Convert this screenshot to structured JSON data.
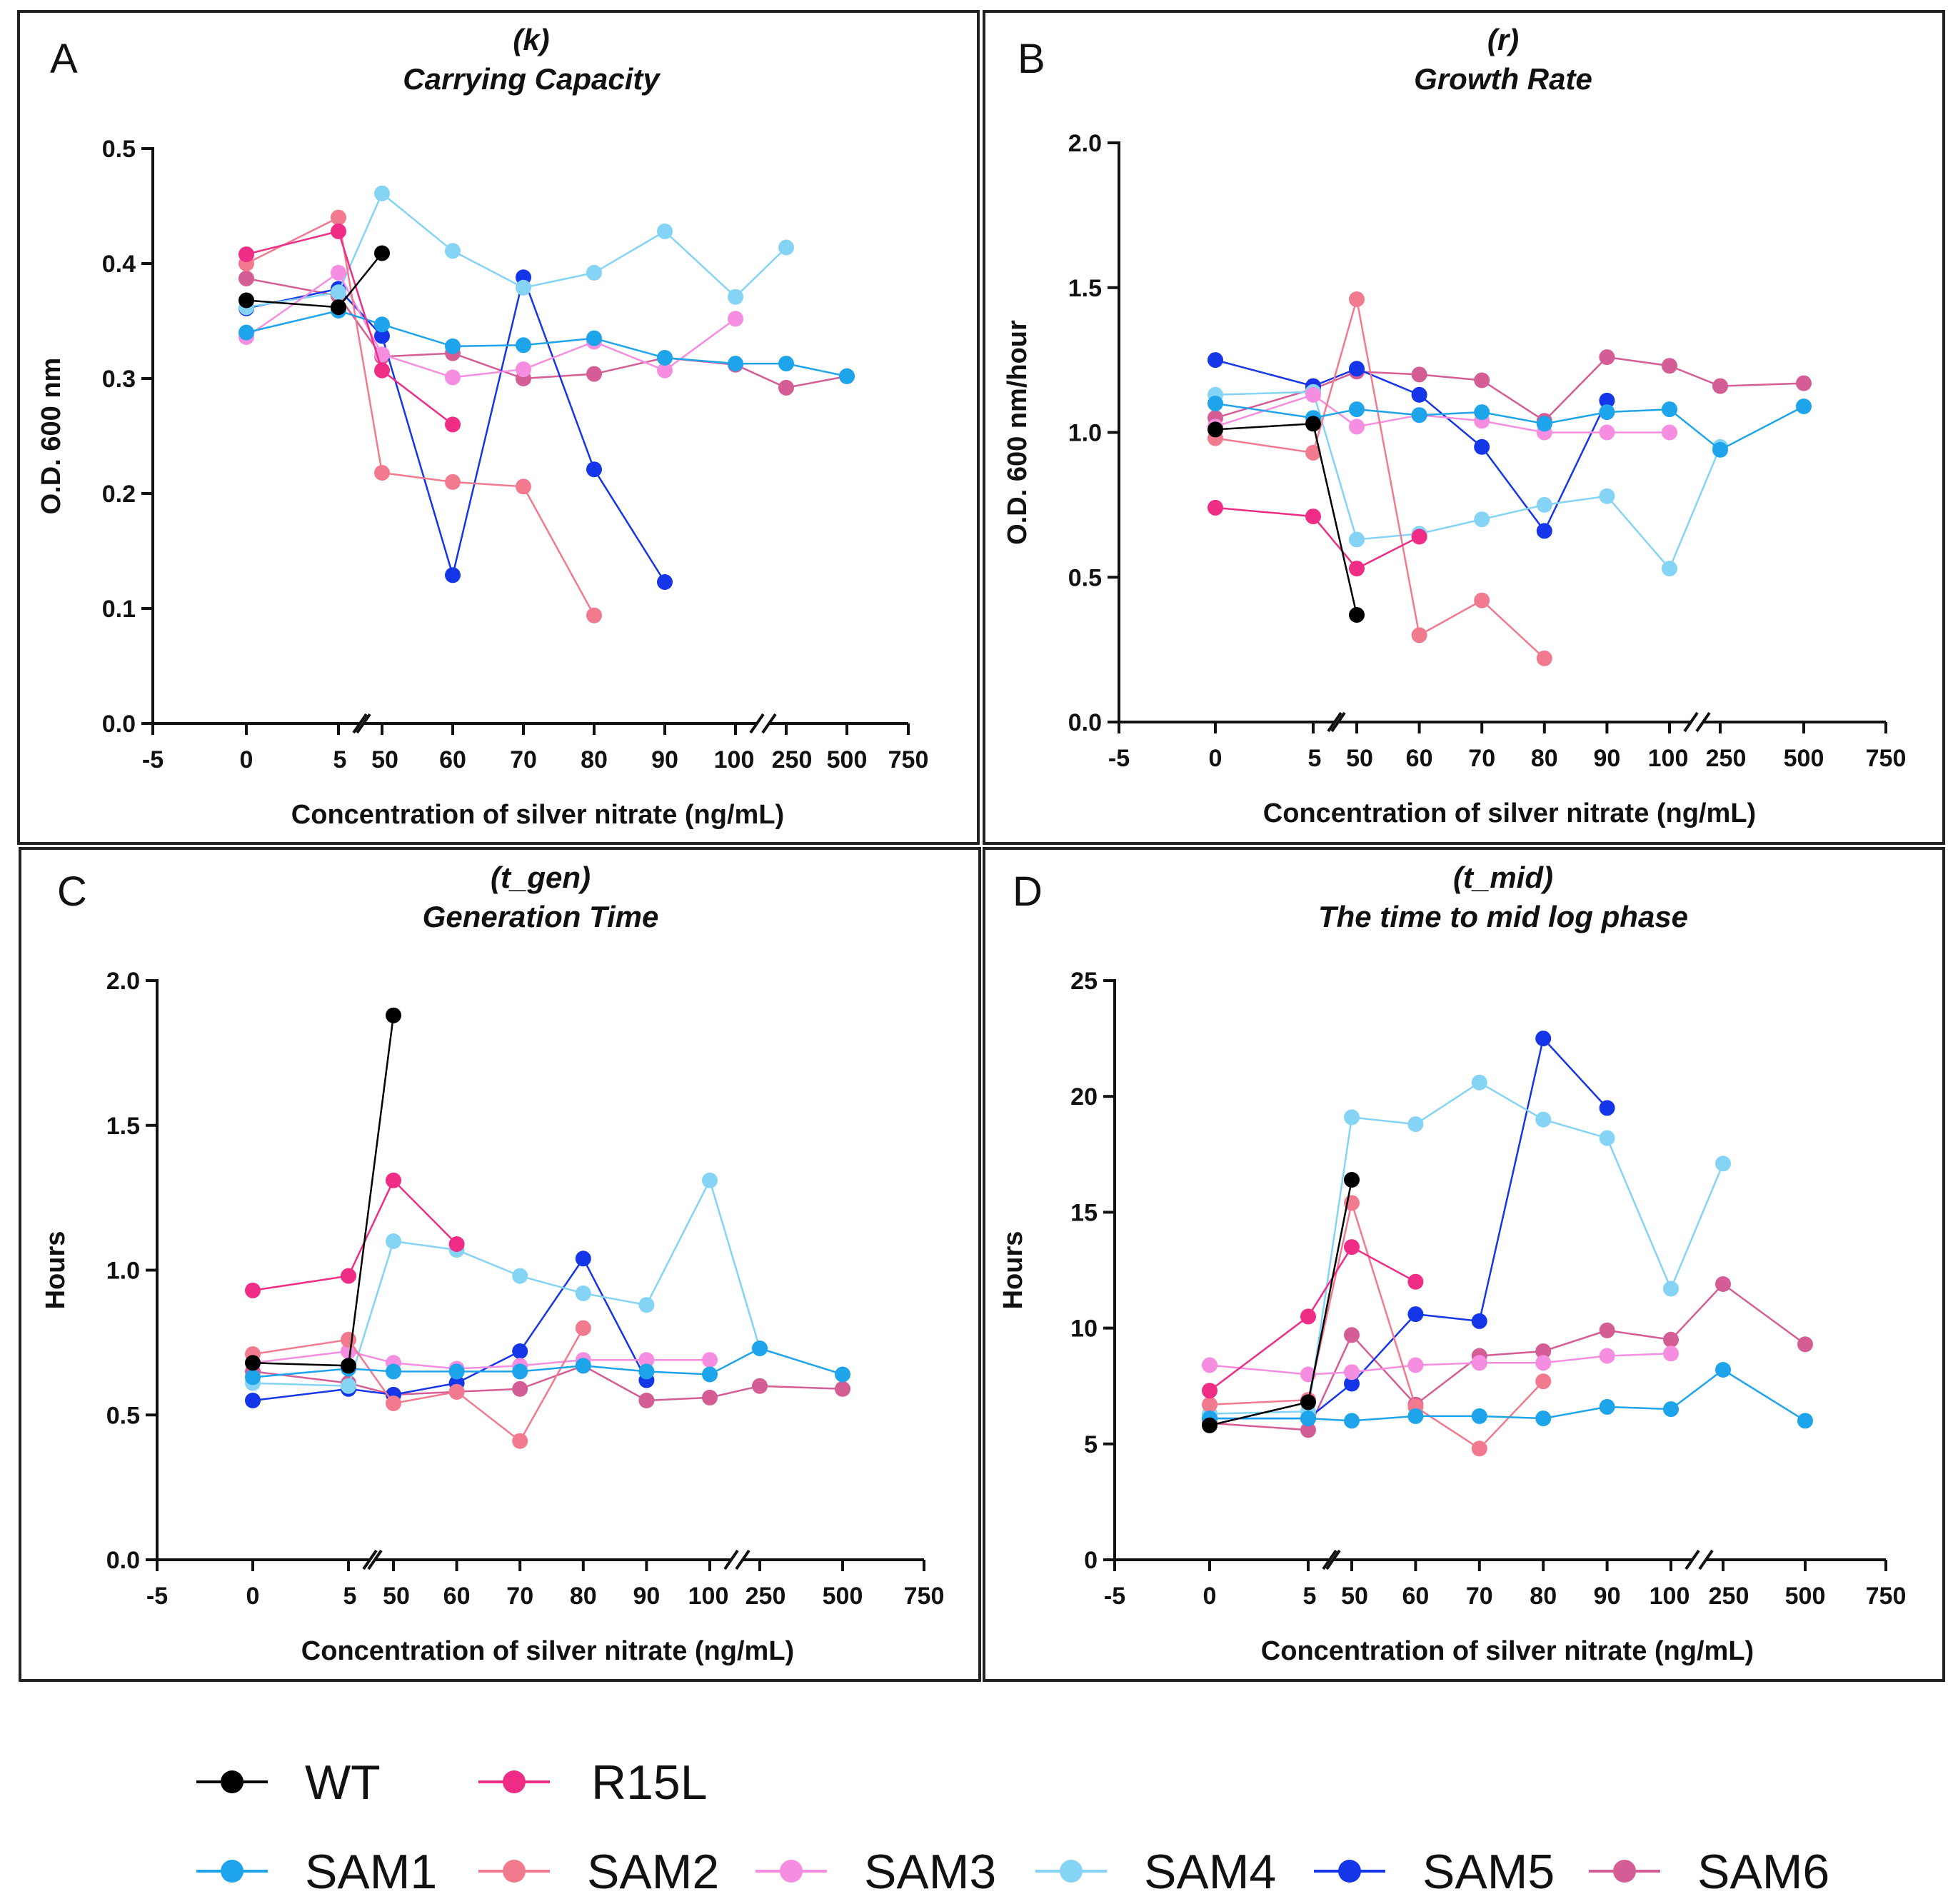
{
  "legend": [
    {
      "name": "WT",
      "color": "#000000"
    },
    {
      "name": "R15L",
      "color": "#ef2d86"
    },
    {
      "name": "SAM1",
      "color": "#1ea4ea"
    },
    {
      "name": "SAM2",
      "color": "#f27a8e"
    },
    {
      "name": "SAM3",
      "color": "#f58ee0"
    },
    {
      "name": "SAM4",
      "color": "#85d3f5"
    },
    {
      "name": "SAM5",
      "color": "#1535e8"
    },
    {
      "name": "SAM6",
      "color": "#d45d95"
    }
  ],
  "chart_data": [
    {
      "type": "line",
      "panel": "A",
      "title_line1": "(k)",
      "title_line2": "Carrying Capacity",
      "xlabel": "Concentration of silver nitrate (ng/mL)",
      "ylabel": "O.D. 600 nm",
      "ylim": [
        0,
        0.5
      ],
      "yticks": [
        0.0,
        0.1,
        0.2,
        0.3,
        0.4,
        0.5
      ],
      "ytick_labels": [
        "0.0",
        "0.1",
        "0.2",
        "0.3",
        "0.4",
        "0.5"
      ],
      "xticks": [
        "-5",
        "0",
        "5",
        "50",
        "60",
        "70",
        "80",
        "90",
        "100",
        "250",
        "500",
        "750"
      ],
      "series": [
        {
          "name": "WT",
          "x": [
            0,
            5,
            50
          ],
          "y": [
            0.368,
            0.362,
            0.409
          ]
        },
        {
          "name": "R15L",
          "x": [
            0,
            5,
            50,
            60
          ],
          "y": [
            0.408,
            0.428,
            0.307,
            0.26
          ]
        },
        {
          "name": "SAM1",
          "x": [
            0,
            5,
            50,
            60,
            70,
            80,
            90,
            100,
            250,
            500
          ],
          "y": [
            0.34,
            0.359,
            0.347,
            0.328,
            0.329,
            0.335,
            0.318,
            0.313,
            0.313,
            0.302
          ]
        },
        {
          "name": "SAM2",
          "x": [
            0,
            5,
            50,
            60,
            70,
            80
          ],
          "y": [
            0.4,
            0.44,
            0.218,
            0.21,
            0.206,
            0.094
          ]
        },
        {
          "name": "SAM3",
          "x": [
            0,
            5,
            50,
            60,
            70,
            80,
            90,
            100
          ],
          "y": [
            0.336,
            0.392,
            0.321,
            0.301,
            0.308,
            0.332,
            0.307,
            0.352
          ]
        },
        {
          "name": "SAM4",
          "x": [
            0,
            5,
            50,
            60,
            70,
            80,
            90,
            100,
            250
          ],
          "y": [
            0.362,
            0.375,
            0.461,
            0.411,
            0.379,
            0.392,
            0.428,
            0.371,
            0.414
          ]
        },
        {
          "name": "SAM5",
          "x": [
            0,
            5,
            50,
            60,
            70,
            80,
            90
          ],
          "y": [
            0.361,
            0.378,
            0.337,
            0.129,
            0.388,
            0.221,
            0.123
          ]
        },
        {
          "name": "SAM6",
          "x": [
            0,
            5,
            50,
            60,
            70,
            80,
            90,
            100,
            250,
            500
          ],
          "y": [
            0.387,
            0.372,
            0.319,
            0.322,
            0.3,
            0.304,
            0.318,
            0.312,
            0.292,
            0.302
          ]
        }
      ]
    },
    {
      "type": "line",
      "panel": "B",
      "title_line1": "(r)",
      "title_line2": "Growth Rate",
      "xlabel": "Concentration of silver nitrate (ng/mL)",
      "ylabel": "O.D. 600 nm/hour",
      "ylim": [
        0,
        2.0
      ],
      "yticks": [
        0.0,
        0.5,
        1.0,
        1.5,
        2.0
      ],
      "ytick_labels": [
        "0.0",
        "0.5",
        "1.0",
        "1.5",
        "2.0"
      ],
      "xticks": [
        "-5",
        "0",
        "5",
        "50",
        "60",
        "70",
        "80",
        "90",
        "100",
        "250",
        "500",
        "750"
      ],
      "series": [
        {
          "name": "WT",
          "x": [
            0,
            5,
            50
          ],
          "y": [
            1.01,
            1.03,
            0.37
          ]
        },
        {
          "name": "R15L",
          "x": [
            0,
            5,
            50,
            60
          ],
          "y": [
            0.74,
            0.71,
            0.53,
            0.64
          ]
        },
        {
          "name": "SAM1",
          "x": [
            0,
            5,
            50,
            60,
            70,
            80,
            90,
            100,
            250,
            500
          ],
          "y": [
            1.1,
            1.05,
            1.08,
            1.06,
            1.07,
            1.03,
            1.07,
            1.08,
            0.94,
            1.09
          ]
        },
        {
          "name": "SAM2",
          "x": [
            0,
            5,
            50,
            60,
            70,
            80
          ],
          "y": [
            0.98,
            0.93,
            1.46,
            0.3,
            0.42,
            0.22
          ]
        },
        {
          "name": "SAM3",
          "x": [
            0,
            5,
            50,
            60,
            70,
            80,
            90,
            100
          ],
          "y": [
            1.02,
            1.13,
            1.02,
            1.06,
            1.04,
            1.0,
            1.0,
            1.0
          ]
        },
        {
          "name": "SAM4",
          "x": [
            0,
            5,
            50,
            60,
            70,
            80,
            90,
            100,
            250
          ],
          "y": [
            1.13,
            1.14,
            0.63,
            0.65,
            0.7,
            0.75,
            0.78,
            0.53,
            0.95
          ]
        },
        {
          "name": "SAM5",
          "x": [
            0,
            5,
            50,
            60,
            70,
            80,
            90
          ],
          "y": [
            1.25,
            1.16,
            1.22,
            1.13,
            0.95,
            0.66,
            1.11
          ]
        },
        {
          "name": "SAM6",
          "x": [
            0,
            5,
            50,
            60,
            70,
            80,
            90,
            100,
            250,
            500
          ],
          "y": [
            1.05,
            1.15,
            1.21,
            1.2,
            1.18,
            1.04,
            1.26,
            1.23,
            1.16,
            1.17
          ]
        }
      ]
    },
    {
      "type": "line",
      "panel": "C",
      "title_line1": "(t_gen)",
      "title_line2": "Generation Time",
      "xlabel": "Concentration of silver nitrate (ng/mL)",
      "ylabel": "Hours",
      "ylim": [
        0,
        2.0
      ],
      "yticks": [
        0.0,
        0.5,
        1.0,
        1.5,
        2.0
      ],
      "ytick_labels": [
        "0.0",
        "0.5",
        "1.0",
        "1.5",
        "2.0"
      ],
      "xticks": [
        "-5",
        "0",
        "5",
        "50",
        "60",
        "70",
        "80",
        "90",
        "100",
        "250",
        "500",
        "750"
      ],
      "series": [
        {
          "name": "WT",
          "x": [
            0,
            5,
            50
          ],
          "y": [
            0.68,
            0.67,
            1.88
          ]
        },
        {
          "name": "R15L",
          "x": [
            0,
            5,
            50,
            60
          ],
          "y": [
            0.93,
            0.98,
            1.31,
            1.09
          ]
        },
        {
          "name": "SAM1",
          "x": [
            0,
            5,
            50,
            60,
            70,
            80,
            90,
            100,
            250,
            500
          ],
          "y": [
            0.63,
            0.66,
            0.65,
            0.65,
            0.65,
            0.67,
            0.65,
            0.64,
            0.73,
            0.64
          ]
        },
        {
          "name": "SAM2",
          "x": [
            0,
            5,
            50,
            60,
            70,
            80
          ],
          "y": [
            0.71,
            0.76,
            0.54,
            0.58,
            0.41,
            0.8
          ]
        },
        {
          "name": "SAM3",
          "x": [
            0,
            5,
            50,
            60,
            70,
            80,
            90,
            100
          ],
          "y": [
            0.68,
            0.72,
            0.68,
            0.66,
            0.67,
            0.69,
            0.69,
            0.69
          ]
        },
        {
          "name": "SAM4",
          "x": [
            0,
            5,
            50,
            60,
            70,
            80,
            90,
            100,
            250
          ],
          "y": [
            0.61,
            0.6,
            1.1,
            1.07,
            0.98,
            0.92,
            0.88,
            1.31,
            0.73
          ]
        },
        {
          "name": "SAM5",
          "x": [
            0,
            5,
            50,
            60,
            70,
            80,
            90
          ],
          "y": [
            0.55,
            0.59,
            0.57,
            0.61,
            0.72,
            1.04,
            0.62
          ]
        },
        {
          "name": "SAM6",
          "x": [
            0,
            5,
            50,
            60,
            70,
            80,
            90,
            100,
            250,
            500
          ],
          "y": [
            0.65,
            0.61,
            0.57,
            0.58,
            0.59,
            0.67,
            0.55,
            0.56,
            0.6,
            0.59
          ]
        }
      ]
    },
    {
      "type": "line",
      "panel": "D",
      "title_line1": "(t_mid)",
      "title_line2": "The time to mid log phase",
      "xlabel": "Concentration of silver nitrate (ng/mL)",
      "ylabel": "Hours",
      "ylim": [
        0,
        25
      ],
      "yticks": [
        0,
        5,
        10,
        15,
        20,
        25
      ],
      "ytick_labels": [
        "0",
        "5",
        "10",
        "15",
        "20",
        "25"
      ],
      "xticks": [
        "-5",
        "0",
        "5",
        "50",
        "60",
        "70",
        "80",
        "90",
        "100",
        "250",
        "500",
        "750"
      ],
      "series": [
        {
          "name": "WT",
          "x": [
            0,
            5,
            50
          ],
          "y": [
            5.8,
            6.8,
            16.4
          ]
        },
        {
          "name": "R15L",
          "x": [
            0,
            5,
            50,
            60
          ],
          "y": [
            7.3,
            10.5,
            13.5,
            12.0
          ]
        },
        {
          "name": "SAM1",
          "x": [
            0,
            5,
            50,
            60,
            70,
            80,
            90,
            100,
            250,
            500
          ],
          "y": [
            6.1,
            6.1,
            6.0,
            6.2,
            6.2,
            6.1,
            6.6,
            6.5,
            8.2,
            6.0
          ]
        },
        {
          "name": "SAM2",
          "x": [
            0,
            5,
            50,
            60,
            70,
            80
          ],
          "y": [
            6.7,
            6.9,
            15.4,
            6.6,
            4.8,
            7.7
          ]
        },
        {
          "name": "SAM3",
          "x": [
            0,
            5,
            50,
            60,
            70,
            80,
            90,
            100
          ],
          "y": [
            8.4,
            8.0,
            8.1,
            8.4,
            8.5,
            8.5,
            8.8,
            8.9
          ]
        },
        {
          "name": "SAM4",
          "x": [
            0,
            5,
            50,
            60,
            70,
            80,
            90,
            100,
            250
          ],
          "y": [
            6.3,
            6.4,
            19.1,
            18.8,
            20.6,
            19.0,
            18.2,
            11.7,
            17.1
          ]
        },
        {
          "name": "SAM5",
          "x": [
            0,
            5,
            50,
            60,
            70,
            80,
            90
          ],
          "y": [
            6.1,
            6.1,
            7.6,
            10.6,
            10.3,
            22.5,
            19.5
          ]
        },
        {
          "name": "SAM6",
          "x": [
            0,
            5,
            50,
            60,
            70,
            80,
            90,
            100,
            250,
            500
          ],
          "y": [
            5.9,
            5.6,
            9.7,
            6.7,
            8.8,
            9.0,
            9.9,
            9.5,
            11.9,
            9.3
          ]
        }
      ]
    }
  ]
}
